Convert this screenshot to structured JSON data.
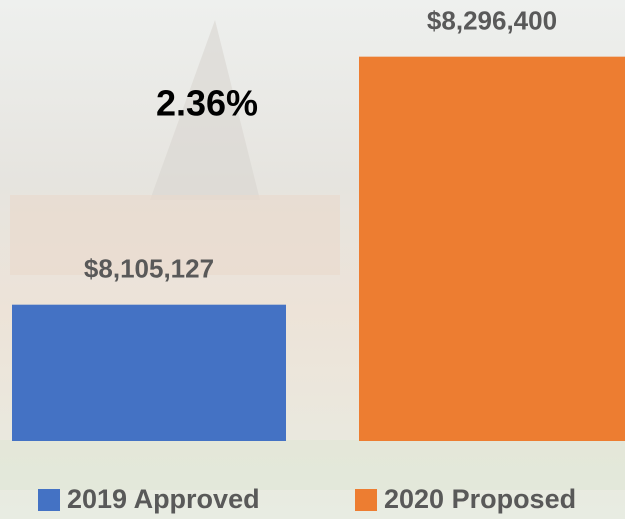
{
  "chart_data": {
    "type": "bar",
    "categories": [
      "2019 Approved",
      "2020 Proposed"
    ],
    "values": [
      8105127,
      8296400
    ],
    "value_labels": [
      "$8,105,127",
      "$8,296,400"
    ],
    "colors": [
      "#4472c4",
      "#ed7d31"
    ],
    "annotation": "2.36%",
    "ylim": [
      8000000,
      8300000
    ],
    "legend": "bottom"
  }
}
